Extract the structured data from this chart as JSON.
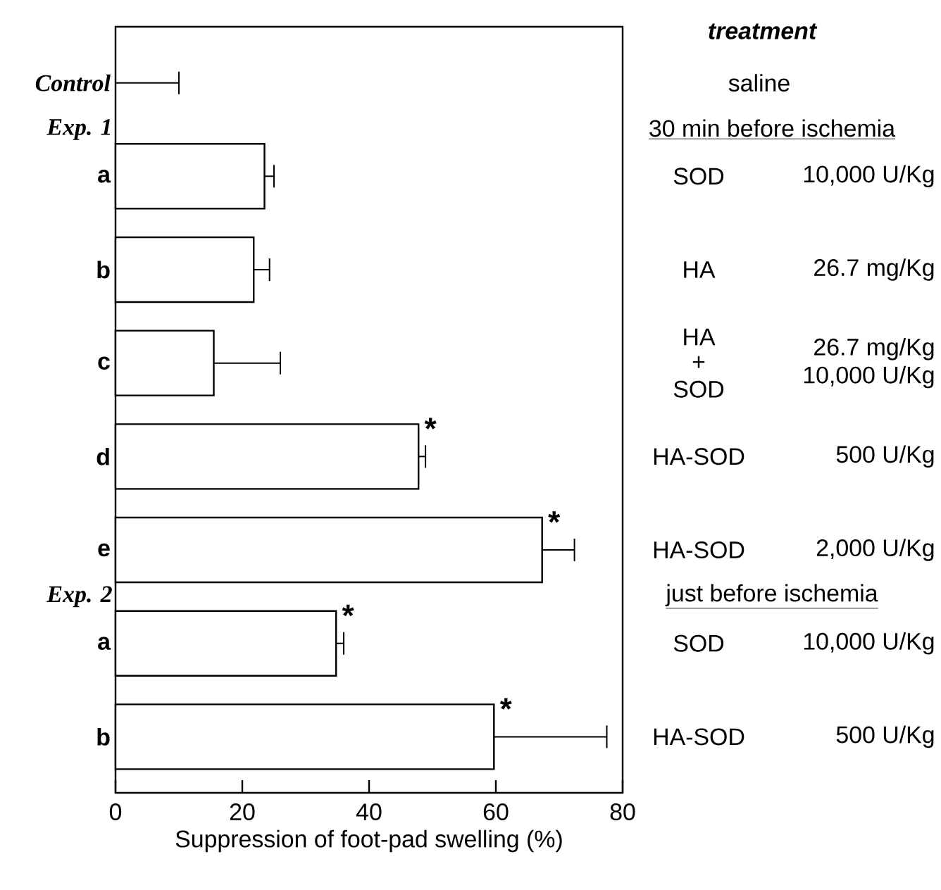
{
  "chart_data": {
    "type": "bar",
    "orientation": "horizontal",
    "xlabel": "Suppression of foot-pad swelling (%)",
    "categories": [
      "Control",
      "a",
      "b",
      "c",
      "d",
      "e",
      "a",
      "b"
    ],
    "values": [
      0,
      23.5,
      21.8,
      15.5,
      47.8,
      67.3,
      34.8,
      59.7
    ],
    "errors": [
      [
        0,
        10
      ],
      [
        23.5,
        25
      ],
      [
        21.8,
        24.3
      ],
      [
        15.5,
        26
      ],
      [
        47.8,
        48.9
      ],
      [
        67.3,
        72.4
      ],
      [
        34.8,
        36
      ],
      [
        59.7,
        77.5
      ]
    ],
    "value_labels": [
      null,
      null,
      null,
      null,
      "*",
      "*",
      "*",
      "*"
    ],
    "color": "#ffffff",
    "xlim": [
      0,
      80
    ],
    "xticks": [
      0,
      20,
      40,
      60,
      80
    ],
    "annotations": [
      "treatment",
      "saline",
      "30 min before ischemia",
      "SOD",
      "10,000 U/Kg",
      "HA",
      "26.7 mg/Kg",
      "HA",
      "+",
      "SOD",
      "26.7 mg/Kg",
      "10,000 U/Kg",
      "HA-SOD",
      "500 U/Kg",
      "HA-SOD",
      "2,000 U/Kg",
      "just before ischemia",
      "SOD",
      "10,000 U/Kg",
      "HA-SOD",
      "500 U/Kg",
      "Exp. 1",
      "Exp. 2"
    ]
  }
}
